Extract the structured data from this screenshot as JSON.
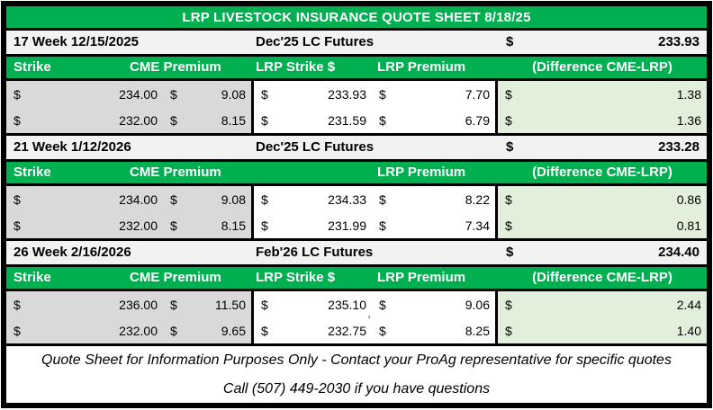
{
  "title": "LRP LIVESTOCK INSURANCE QUOTE SHEET 8/18/25",
  "currency": "$",
  "colors": {
    "header_green": "#00B050",
    "difference_green": "#E2EFDA",
    "strike_gray": "#D9D9D9",
    "week_row_bg": "#F2F2F2",
    "border_black": "#000000"
  },
  "columns": {
    "strike": "Strike",
    "cme_premium": "CME Premium",
    "lrp_strike": "LRP Strike $",
    "lrp_premium": "LRP Premium",
    "difference": "(Difference CME-LRP)"
  },
  "sections": [
    {
      "week_label": "17 Week 12/15/2025",
      "futures_label": "Dec'25 LC Futures",
      "futures_price": "233.93",
      "rows": [
        {
          "strike": "234.00",
          "cme_premium": "9.08",
          "lrp_strike": "233.93",
          "lrp_premium": "7.70",
          "difference": "1.38"
        },
        {
          "strike": "232.00",
          "cme_premium": "8.15",
          "lrp_strike": "231.59",
          "lrp_premium": "6.79",
          "difference": "1.36"
        }
      ]
    },
    {
      "week_label": "21 Week 1/12/2026",
      "futures_label": "Dec'25 LC Futures",
      "futures_price": "233.28",
      "rows": [
        {
          "strike": "234.00",
          "cme_premium": "9.08",
          "lrp_strike": "234.33",
          "lrp_premium": "8.22",
          "difference": "0.86"
        },
        {
          "strike": "232.00",
          "cme_premium": "8.15",
          "lrp_strike": "231.99",
          "lrp_premium": "7.34",
          "difference": "0.81"
        }
      ]
    },
    {
      "week_label": "26 Week 2/16/2026",
      "futures_label": "Feb'26 LC Futures",
      "futures_price": "234.40",
      "stray_mark": "'",
      "rows": [
        {
          "strike": "236.00",
          "cme_premium": "11.50",
          "lrp_strike": "235.10",
          "lrp_premium": "9.06",
          "difference": "2.44"
        },
        {
          "strike": "232.00",
          "cme_premium": "9.65",
          "lrp_strike": "232.75",
          "lrp_premium": "8.25",
          "difference": "1.40"
        }
      ]
    }
  ],
  "footer": {
    "line1": "Quote Sheet for Information Purposes Only - Contact your ProAg representative for specific quotes",
    "line2": "Call (507) 449-2030 if you have questions"
  }
}
